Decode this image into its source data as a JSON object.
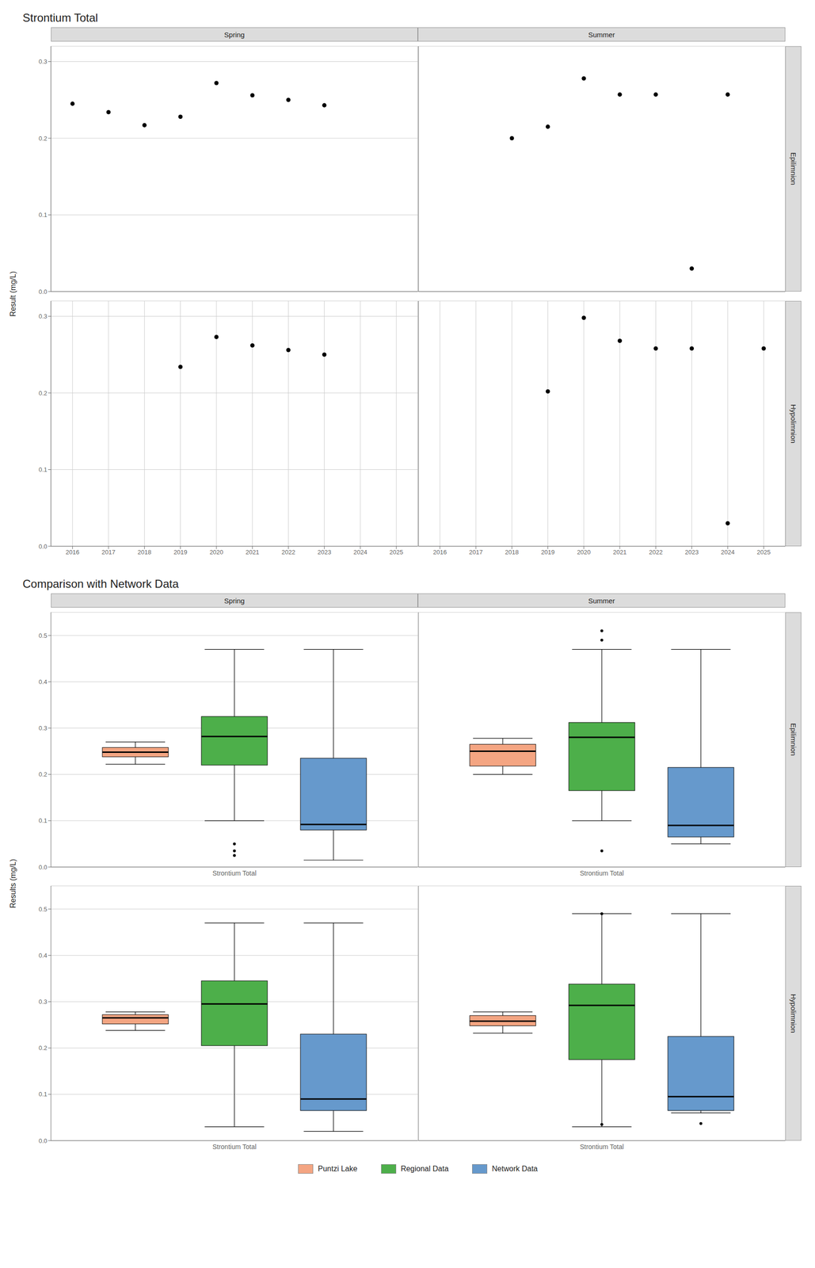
{
  "chart_data": [
    {
      "type": "scatter",
      "title": "Strontium Total",
      "ylabel": "Result (mg/L)",
      "color": "black",
      "grid": true,
      "columns": [
        "Spring",
        "Summer"
      ],
      "rows": [
        "Epilimnion",
        "Hypolimnion"
      ],
      "x": [
        2016,
        2017,
        2018,
        2019,
        2020,
        2021,
        2022,
        2023,
        2024,
        2025
      ],
      "xlim": [
        2015.4,
        2025.6
      ],
      "xticks": [
        2016,
        2017,
        2018,
        2019,
        2020,
        2021,
        2022,
        2023,
        2024,
        2025
      ],
      "ylim": [
        0.0,
        0.32
      ],
      "yticks": [
        {
          "value": 0.0,
          "label": "0.0"
        },
        0.1,
        0.2,
        0.3
      ],
      "panels": [
        {
          "column": "Spring",
          "row": "Epilimnion",
          "values": [
            0.245,
            0.234,
            0.217,
            0.228,
            0.272,
            0.256,
            0.25,
            0.243,
            null,
            null
          ]
        },
        {
          "column": "Summer",
          "row": "Epilimnion",
          "values": [
            null,
            null,
            0.2,
            0.215,
            0.278,
            0.257,
            0.257,
            0.03,
            0.257,
            null
          ]
        },
        {
          "column": "Spring",
          "row": "Hypolimnion",
          "values": [
            null,
            null,
            null,
            0.234,
            0.273,
            0.262,
            0.256,
            0.25,
            null,
            null
          ]
        },
        {
          "column": "Summer",
          "row": "Hypolimnion",
          "values": [
            null,
            null,
            null,
            0.202,
            0.298,
            0.268,
            0.258,
            0.258,
            0.03,
            0.258
          ]
        }
      ]
    },
    {
      "type": "box",
      "title": "Comparison with Network Data",
      "ylabel": "Results (mg/L)",
      "grid": "y",
      "legend": "bottom",
      "columns": [
        "Spring",
        "Summer"
      ],
      "rows": [
        "Epilimnion",
        "Hypolimnion"
      ],
      "categories": [
        "Strontium Total"
      ],
      "ylim": [
        0.0,
        0.55
      ],
      "yticks": [
        {
          "value": 0.0,
          "label": "0.0"
        },
        0.1,
        0.2,
        0.3,
        0.4,
        0.5
      ],
      "series": [
        {
          "name": "Puntzi Lake",
          "color": "#F4A582"
        },
        {
          "name": "Regional Data",
          "color": "#4DAF4A"
        },
        {
          "name": "Network Data",
          "color": "#6699CC"
        }
      ],
      "panels": [
        {
          "column": "Spring",
          "row": "Epilimnion",
          "values": [
            {
              "q1": 0.238,
              "median": 0.248,
              "q3": 0.258,
              "whisker_low": 0.222,
              "whisker_high": 0.27,
              "outliers": []
            },
            {
              "q1": 0.22,
              "median": 0.282,
              "q3": 0.325,
              "whisker_low": 0.1,
              "whisker_high": 0.47,
              "outliers": [
                0.05,
                0.035,
                0.025
              ]
            },
            {
              "q1": 0.08,
              "median": 0.092,
              "q3": 0.235,
              "whisker_low": 0.015,
              "whisker_high": 0.47,
              "outliers": []
            }
          ]
        },
        {
          "column": "Summer",
          "row": "Epilimnion",
          "values": [
            {
              "q1": 0.218,
              "median": 0.25,
              "q3": 0.265,
              "whisker_low": 0.2,
              "whisker_high": 0.278,
              "outliers": []
            },
            {
              "q1": 0.165,
              "median": 0.28,
              "q3": 0.312,
              "whisker_low": 0.1,
              "whisker_high": 0.47,
              "outliers": [
                0.49,
                0.51,
                0.035
              ]
            },
            {
              "q1": 0.065,
              "median": 0.09,
              "q3": 0.215,
              "whisker_low": 0.05,
              "whisker_high": 0.47,
              "outliers": []
            }
          ]
        },
        {
          "column": "Spring",
          "row": "Hypolimnion",
          "values": [
            {
              "q1": 0.252,
              "median": 0.265,
              "q3": 0.272,
              "whisker_low": 0.238,
              "whisker_high": 0.278,
              "outliers": []
            },
            {
              "q1": 0.205,
              "median": 0.295,
              "q3": 0.345,
              "whisker_low": 0.03,
              "whisker_high": 0.47,
              "outliers": []
            },
            {
              "q1": 0.065,
              "median": 0.09,
              "q3": 0.23,
              "whisker_low": 0.02,
              "whisker_high": 0.47,
              "outliers": []
            }
          ]
        },
        {
          "column": "Summer",
          "row": "Hypolimnion",
          "values": [
            {
              "q1": 0.248,
              "median": 0.258,
              "q3": 0.27,
              "whisker_low": 0.232,
              "whisker_high": 0.278,
              "outliers": []
            },
            {
              "q1": 0.175,
              "median": 0.292,
              "q3": 0.338,
              "whisker_low": 0.03,
              "whisker_high": 0.49,
              "outliers": [
                0.49,
                0.035
              ]
            },
            {
              "q1": 0.065,
              "median": 0.095,
              "q3": 0.225,
              "whisker_low": 0.06,
              "whisker_high": 0.49,
              "outliers": [
                0.037
              ]
            }
          ]
        }
      ]
    }
  ]
}
